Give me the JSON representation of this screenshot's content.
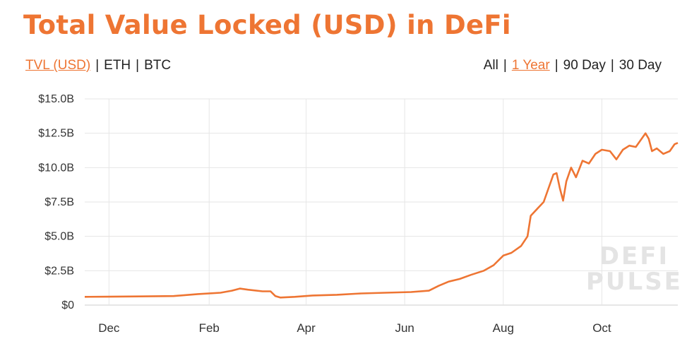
{
  "title": "Total Value Locked (USD) in DeFi",
  "metric_tabs": [
    {
      "label": "TVL (USD)",
      "active": true
    },
    {
      "label": "ETH",
      "active": false
    },
    {
      "label": "BTC",
      "active": false
    }
  ],
  "range_tabs": [
    {
      "label": "All",
      "active": false
    },
    {
      "label": "1 Year",
      "active": true
    },
    {
      "label": "90 Day",
      "active": false
    },
    {
      "label": "30 Day",
      "active": false
    }
  ],
  "watermark": {
    "line1": "DEFI",
    "line2": "PULSE"
  },
  "colors": {
    "accent": "#ee7533",
    "line": "#ee7533",
    "grid": "#e6e6e6",
    "text": "#222222"
  },
  "chart_data": {
    "type": "line",
    "title": "Total Value Locked (USD) in DeFi",
    "ylim": [
      0,
      15
    ],
    "yticks": [
      {
        "value": 0,
        "label": "$0"
      },
      {
        "value": 2.5,
        "label": "$2.5B"
      },
      {
        "value": 5,
        "label": "$5.0B"
      },
      {
        "value": 7.5,
        "label": "$7.5B"
      },
      {
        "value": 10,
        "label": "$10.0B"
      },
      {
        "value": 12.5,
        "label": "$12.5B"
      },
      {
        "value": 15,
        "label": "$15.0B"
      }
    ],
    "xlim": [
      "2019-11-16",
      "2020-11-17"
    ],
    "xticks": [
      {
        "date": "2019-12-01",
        "label": "Dec"
      },
      {
        "date": "2020-02-01",
        "label": "Feb"
      },
      {
        "date": "2020-04-01",
        "label": "Apr"
      },
      {
        "date": "2020-06-01",
        "label": "Jun"
      },
      {
        "date": "2020-08-01",
        "label": "Aug"
      },
      {
        "date": "2020-10-01",
        "label": "Oct"
      }
    ],
    "grid": true,
    "series": [
      {
        "points": [
          [
            "2019-11-16",
            0.6
          ],
          [
            "2019-12-01",
            0.61
          ],
          [
            "2019-12-20",
            0.63
          ],
          [
            "2020-01-10",
            0.66
          ],
          [
            "2020-01-25",
            0.8
          ],
          [
            "2020-02-08",
            0.9
          ],
          [
            "2020-02-15",
            1.05
          ],
          [
            "2020-02-20",
            1.2
          ],
          [
            "2020-02-25",
            1.12
          ],
          [
            "2020-03-05",
            1.0
          ],
          [
            "2020-03-10",
            1.0
          ],
          [
            "2020-03-13",
            0.65
          ],
          [
            "2020-03-16",
            0.55
          ],
          [
            "2020-03-25",
            0.6
          ],
          [
            "2020-04-05",
            0.7
          ],
          [
            "2020-04-20",
            0.75
          ],
          [
            "2020-05-05",
            0.85
          ],
          [
            "2020-05-20",
            0.9
          ],
          [
            "2020-06-05",
            0.95
          ],
          [
            "2020-06-16",
            1.05
          ],
          [
            "2020-06-22",
            1.4
          ],
          [
            "2020-06-28",
            1.7
          ],
          [
            "2020-07-05",
            1.9
          ],
          [
            "2020-07-12",
            2.2
          ],
          [
            "2020-07-20",
            2.5
          ],
          [
            "2020-07-26",
            2.9
          ],
          [
            "2020-08-01",
            3.6
          ],
          [
            "2020-08-06",
            3.8
          ],
          [
            "2020-08-12",
            4.3
          ],
          [
            "2020-08-16",
            5.0
          ],
          [
            "2020-08-18",
            6.5
          ],
          [
            "2020-08-22",
            7.0
          ],
          [
            "2020-08-26",
            7.5
          ],
          [
            "2020-08-29",
            8.5
          ],
          [
            "2020-09-01",
            9.5
          ],
          [
            "2020-09-03",
            9.6
          ],
          [
            "2020-09-05",
            8.5
          ],
          [
            "2020-09-07",
            7.6
          ],
          [
            "2020-09-09",
            9.0
          ],
          [
            "2020-09-12",
            10.0
          ],
          [
            "2020-09-15",
            9.3
          ],
          [
            "2020-09-19",
            10.5
          ],
          [
            "2020-09-23",
            10.3
          ],
          [
            "2020-09-27",
            11.0
          ],
          [
            "2020-10-01",
            11.3
          ],
          [
            "2020-10-06",
            11.2
          ],
          [
            "2020-10-10",
            10.6
          ],
          [
            "2020-10-14",
            11.3
          ],
          [
            "2020-10-18",
            11.6
          ],
          [
            "2020-10-22",
            11.5
          ],
          [
            "2020-10-25",
            12.0
          ],
          [
            "2020-10-28",
            12.5
          ],
          [
            "2020-10-30",
            12.1
          ],
          [
            "2020-11-01",
            11.2
          ],
          [
            "2020-11-04",
            11.4
          ],
          [
            "2020-11-08",
            11.0
          ],
          [
            "2020-11-12",
            11.2
          ],
          [
            "2020-11-15",
            11.7
          ],
          [
            "2020-11-17",
            11.8
          ]
        ]
      }
    ]
  }
}
